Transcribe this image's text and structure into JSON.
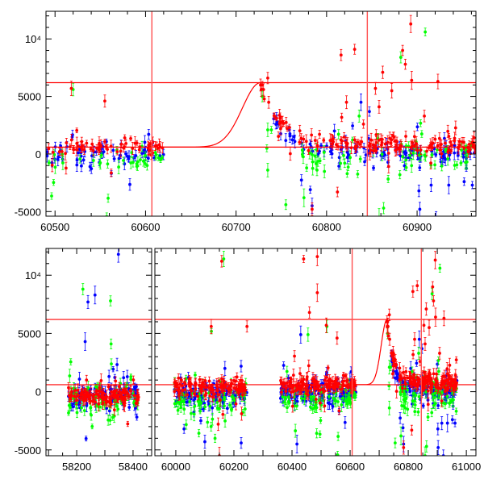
{
  "chart_data": [
    {
      "type": "scatter",
      "title": "",
      "xlabel": "",
      "ylabel": "",
      "panel": "top",
      "xlim": [
        60490,
        60965
      ],
      "ylim": [
        -5400,
        12400
      ],
      "x_ticks": [
        "60500",
        "60600",
        "60700",
        "60800",
        "60900"
      ],
      "y_ticks": [
        "-5000",
        "0",
        "5000",
        "10⁴"
      ],
      "hlines": [
        6200,
        600
      ],
      "vlines": [
        60607,
        60845
      ],
      "model": {
        "baseline": 600,
        "peak": 6200,
        "t_peak": 60727,
        "rise_sigma_days": 20,
        "decay_tau_days": 22,
        "t_start": 60615
      },
      "series_colors": {
        "red": "#ff0000",
        "blue": "#0000ff",
        "green": "#00ff00"
      }
    },
    {
      "type": "scatter",
      "panel": "bottom",
      "broken_axis": true,
      "xlim": [
        [
          58091,
          58466
        ],
        [
          59928,
          61033
        ]
      ],
      "ylim": [
        -5500,
        12300
      ],
      "x_ticks": [
        [
          "58200",
          "58400"
        ],
        [
          "60000",
          "60200",
          "60400",
          "60600",
          "60800",
          "61000"
        ]
      ],
      "y_ticks": [
        "-5000",
        "0",
        "5000",
        "10⁴"
      ],
      "hlines": [
        6200,
        600
      ],
      "vlines": [
        60607,
        60845
      ],
      "series": [
        {
          "name": "red",
          "color": "#ff0000",
          "segments": [
            {
              "t0": 58170,
              "t1": 58420,
              "mean": -400,
              "scatter": 700,
              "n": 120
            },
            {
              "t0": 59995,
              "t1": 60245,
              "mean": 450,
              "scatter": 700,
              "n": 120
            },
            {
              "t0": 60360,
              "t1": 60620,
              "mean": 550,
              "scatter": 650,
              "n": 130
            },
            {
              "t0": 60727,
              "t1": 60968,
              "mean": 750,
              "scatter": 650,
              "n": 150,
              "follows_model": true
            }
          ],
          "outliers": [
            [
              60816,
              8600
            ],
            [
              60831,
              9100
            ],
            [
              60854,
              5700
            ],
            [
              60858,
              4100
            ],
            [
              60862,
              7100
            ],
            [
              60872,
              5500
            ],
            [
              60884,
              9000
            ],
            [
              60887,
              7800
            ],
            [
              60893,
              11300
            ],
            [
              60894,
              6400
            ],
            [
              60923,
              6300
            ],
            [
              60735,
              6600
            ],
            [
              60158,
              11200
            ],
            [
              60245,
              5600
            ],
            [
              60122,
              5600
            ],
            [
              60440,
              11400
            ],
            [
              60487,
              11600
            ],
            [
              60487,
              8500
            ],
            [
              60460,
              6800
            ],
            [
              60518,
              5700
            ],
            [
              60555,
              4600
            ],
            [
              60822,
              4500
            ],
            [
              60908,
              3300
            ],
            [
              60784,
              -4800
            ],
            [
              60812,
              -3300
            ],
            [
              60150,
              -5500
            ]
          ]
        },
        {
          "name": "blue",
          "color": "#0000ff",
          "segments": [
            {
              "t0": 58170,
              "t1": 58420,
              "mean": -300,
              "scatter": 800,
              "n": 100
            },
            {
              "t0": 59995,
              "t1": 60245,
              "mean": -300,
              "scatter": 900,
              "n": 110
            },
            {
              "t0": 60360,
              "t1": 60620,
              "mean": -100,
              "scatter": 900,
              "n": 120
            },
            {
              "t0": 60740,
              "t1": 60968,
              "mean": 150,
              "scatter": 800,
              "n": 120,
              "follows_model": true
            }
          ],
          "outliers": [
            [
              58240,
              7700
            ],
            [
              58265,
              8300
            ],
            [
              58230,
              4300
            ],
            [
              58348,
              11800
            ],
            [
              60430,
              4900
            ],
            [
              60838,
              4500
            ],
            [
              60782,
              -3100
            ],
            [
              60784,
              -4500
            ],
            [
              60902,
              -3200
            ],
            [
              60903,
              -4800
            ],
            [
              60921,
              -5500
            ],
            [
              60935,
              -2700
            ],
            [
              60952,
              -2400
            ],
            [
              60961,
              -2700
            ],
            [
              60417,
              -4500
            ],
            [
              60100,
              -4300
            ],
            [
              60225,
              -4400
            ]
          ]
        },
        {
          "name": "green",
          "color": "#00ff00",
          "segments": [
            {
              "t0": 58170,
              "t1": 58420,
              "mean": -900,
              "scatter": 1500,
              "n": 70
            },
            {
              "t0": 59995,
              "t1": 60245,
              "mean": -800,
              "scatter": 1500,
              "n": 70
            },
            {
              "t0": 60360,
              "t1": 60620,
              "mean": -600,
              "scatter": 1500,
              "n": 70
            },
            {
              "t0": 60760,
              "t1": 60968,
              "mean": -500,
              "scatter": 1400,
              "n": 70
            }
          ],
          "outliers": [
            [
              60729,
              5000
            ],
            [
              60735,
              2100
            ],
            [
              60739,
              2100
            ],
            [
              60734,
              500
            ],
            [
              60735,
              -1400
            ],
            [
              60755,
              -4400
            ],
            [
              60775,
              -3800
            ],
            [
              60882,
              8400
            ],
            [
              60909,
              10600
            ],
            [
              60836,
              3300
            ],
            [
              58222,
              8800
            ],
            [
              58320,
              7800
            ],
            [
              58322,
              4100
            ],
            [
              60165,
              11400
            ],
            [
              60455,
              4900
            ],
            [
              60520,
              5600
            ],
            [
              60858,
              -5500
            ],
            [
              60863,
              -4700
            ]
          ]
        }
      ]
    }
  ]
}
